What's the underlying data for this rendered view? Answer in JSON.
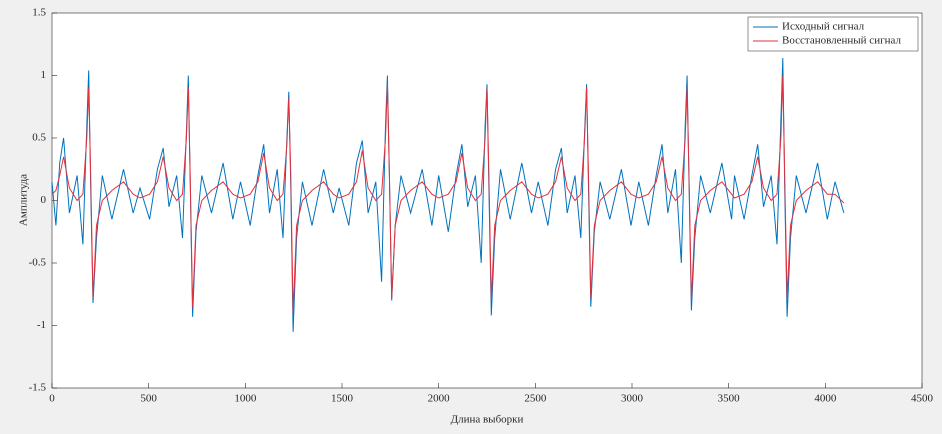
{
  "chart_data": {
    "type": "line",
    "xlabel": "Длина выборки",
    "ylabel": "Амплитуда",
    "xlim": [
      0,
      4500
    ],
    "xticks": [
      0,
      500,
      1000,
      1500,
      2000,
      2500,
      3000,
      3500,
      4000,
      4500
    ],
    "ylim": [
      -1.5,
      1.5
    ],
    "yticks": [
      -1.5,
      -1,
      -0.5,
      0,
      0.5,
      1,
      1.5
    ],
    "legend": "upper right",
    "x": [
      0,
      20,
      40,
      60,
      90,
      130,
      160,
      180,
      190,
      200,
      212,
      230,
      260,
      310,
      370,
      420,
      455,
      505,
      545,
      575,
      605,
      645,
      675,
      695,
      705,
      715,
      727,
      745,
      775,
      825,
      885,
      935,
      975,
      1025,
      1065,
      1095,
      1125,
      1165,
      1195,
      1215,
      1225,
      1235,
      1247,
      1265,
      1295,
      1345,
      1405,
      1455,
      1485,
      1535,
      1575,
      1605,
      1635,
      1675,
      1705,
      1725,
      1735,
      1745,
      1757,
      1775,
      1805,
      1855,
      1915,
      1965,
      2000,
      2050,
      2090,
      2120,
      2150,
      2190,
      2220,
      2240,
      2250,
      2260,
      2272,
      2290,
      2320,
      2370,
      2430,
      2480,
      2515,
      2565,
      2605,
      2635,
      2665,
      2705,
      2735,
      2755,
      2765,
      2775,
      2787,
      2805,
      2835,
      2885,
      2945,
      2995,
      3035,
      3085,
      3125,
      3155,
      3185,
      3225,
      3255,
      3275,
      3285,
      3295,
      3307,
      3325,
      3355,
      3405,
      3465,
      3515,
      3530,
      3580,
      3620,
      3650,
      3680,
      3720,
      3750,
      3770,
      3780,
      3790,
      3802,
      3820,
      3850,
      3900,
      3960,
      4010,
      4050,
      4096
    ],
    "series": [
      {
        "name": "Исходный сигнал",
        "color": "#0072bd",
        "values": [
          0.15,
          -0.2,
          0.3,
          0.5,
          -0.1,
          0.2,
          -0.35,
          0.6,
          1.04,
          0.1,
          -0.82,
          -0.3,
          0.2,
          -0.15,
          0.25,
          -0.1,
          0.1,
          -0.15,
          0.25,
          0.42,
          -0.05,
          0.2,
          -0.3,
          0.55,
          1.0,
          0.15,
          -0.93,
          -0.25,
          0.2,
          -0.1,
          0.3,
          -0.15,
          0.15,
          -0.2,
          0.2,
          0.45,
          -0.1,
          0.25,
          -0.3,
          0.5,
          0.87,
          0.1,
          -1.05,
          -0.3,
          0.15,
          -0.2,
          0.25,
          -0.1,
          0.1,
          -0.2,
          0.3,
          0.48,
          -0.1,
          0.15,
          -0.65,
          0.6,
          1.0,
          0.2,
          -0.8,
          -0.2,
          0.2,
          -0.1,
          0.25,
          -0.2,
          0.2,
          -0.25,
          0.2,
          0.45,
          -0.05,
          0.2,
          -0.5,
          0.6,
          0.93,
          0.1,
          -0.92,
          -0.3,
          0.25,
          -0.15,
          0.3,
          -0.1,
          0.15,
          -0.2,
          0.25,
          0.42,
          -0.1,
          0.2,
          -0.3,
          0.55,
          0.93,
          0.1,
          -0.85,
          -0.25,
          0.15,
          -0.15,
          0.25,
          -0.2,
          0.15,
          -0.2,
          0.2,
          0.45,
          -0.1,
          0.25,
          -0.5,
          0.6,
          1.0,
          0.15,
          -0.88,
          -0.3,
          0.2,
          -0.1,
          0.3,
          -0.15,
          0.2,
          -0.15,
          0.2,
          0.45,
          -0.05,
          0.2,
          -0.35,
          0.65,
          1.14,
          0.1,
          -0.93,
          -0.3,
          0.2,
          -0.1,
          0.3,
          -0.15,
          0.15,
          -0.1
        ]
      },
      {
        "name": "Восстановленный сигнал",
        "color": "#e2323c",
        "values": [
          0.05,
          0.08,
          0.2,
          0.35,
          0.1,
          0.0,
          0.05,
          0.5,
          0.9,
          0.2,
          -0.78,
          -0.2,
          0.0,
          0.08,
          0.15,
          0.05,
          0.02,
          0.05,
          0.15,
          0.35,
          0.1,
          0.0,
          0.05,
          0.5,
          0.9,
          0.2,
          -0.85,
          -0.2,
          0.0,
          0.08,
          0.15,
          0.05,
          0.02,
          0.05,
          0.15,
          0.38,
          0.1,
          0.0,
          0.05,
          0.45,
          0.82,
          0.2,
          -0.9,
          -0.2,
          0.0,
          0.08,
          0.15,
          0.05,
          0.02,
          0.05,
          0.15,
          0.4,
          0.1,
          0.0,
          0.05,
          0.5,
          0.93,
          0.2,
          -0.78,
          -0.2,
          0.0,
          0.08,
          0.15,
          0.05,
          0.02,
          0.05,
          0.15,
          0.38,
          0.1,
          0.0,
          0.05,
          0.5,
          0.9,
          0.2,
          -0.8,
          -0.2,
          0.0,
          0.08,
          0.15,
          0.05,
          0.02,
          0.05,
          0.15,
          0.35,
          0.1,
          0.0,
          0.05,
          0.5,
          0.9,
          0.2,
          -0.78,
          -0.2,
          0.0,
          0.08,
          0.15,
          0.05,
          0.02,
          0.05,
          0.15,
          0.35,
          0.1,
          0.0,
          0.05,
          0.5,
          0.9,
          0.2,
          -0.8,
          -0.2,
          0.0,
          0.08,
          0.15,
          0.05,
          0.02,
          0.05,
          0.15,
          0.35,
          0.1,
          0.0,
          0.05,
          0.5,
          1.0,
          0.2,
          -0.78,
          -0.2,
          0.0,
          0.08,
          0.15,
          0.05,
          0.05,
          -0.02
        ]
      }
    ]
  }
}
